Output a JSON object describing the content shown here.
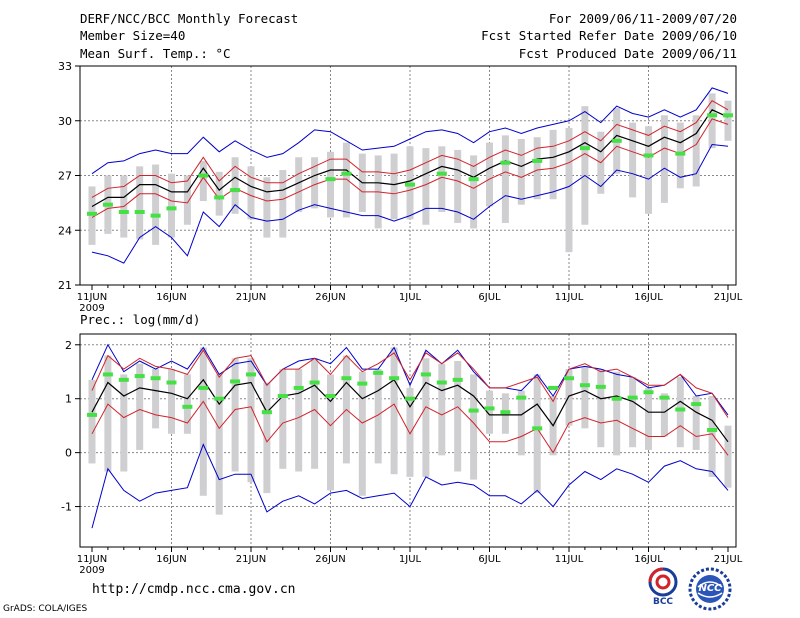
{
  "header": {
    "title": "DERF/NCC/BCC Monthly Forecast",
    "member_size": "Member Size=40",
    "variable": "Mean Surf. Temp.: °C",
    "forecast_period": "For 2009/06/11-2009/07/20",
    "fcst_started": "Fcst Started Refer Date 2009/06/10",
    "fcst_produced": "Fcst Produced Date 2009/06/11"
  },
  "footer": {
    "url": "http://cmdp.ncc.cma.gov.cn",
    "grads": "GrADS: COLA/IGES",
    "logo_bcc": "BCC",
    "logo_ncc": "NCC"
  },
  "colors": {
    "mean": "#000000",
    "std": "#d2232a",
    "range": "#0000cc",
    "box": "#cfcfd2",
    "obs": "#44e044",
    "grid": "#888888"
  },
  "chart_data": [
    {
      "type": "line",
      "title": "Mean Surf. Temp.: °C",
      "x_tick_labels": [
        "11JUN",
        "16JUN",
        "21JUN",
        "26JUN",
        "1JUL",
        "6JUL",
        "11JUL",
        "16JUL",
        "21JUL"
      ],
      "x_tick_day": [
        0,
        5,
        10,
        15,
        20,
        25,
        30,
        35,
        40
      ],
      "year_label": "2009",
      "ylim": [
        21,
        33
      ],
      "y_ticks": [
        21,
        24,
        27,
        30,
        33
      ],
      "days": 40,
      "series": [
        {
          "name": "ensemble mean",
          "values": [
            25.3,
            25.8,
            25.8,
            26.5,
            26.5,
            26.1,
            26.1,
            27.4,
            26.2,
            26.9,
            26.4,
            26.1,
            26.2,
            26.6,
            27,
            27.3,
            27.3,
            26.6,
            26.6,
            26.5,
            26.7,
            27.1,
            27.5,
            27.3,
            26.9,
            27.4,
            27.8,
            27.5,
            27.9,
            28,
            28.3,
            28.8,
            28.3,
            29.2,
            28.9,
            28.6,
            29.1,
            28.8,
            29.3,
            30.6,
            30.2
          ]
        },
        {
          "name": "upper std",
          "values": [
            25.8,
            26.3,
            26.4,
            27,
            27,
            26.6,
            26.7,
            28,
            26.7,
            27.5,
            26.9,
            26.6,
            26.6,
            27.1,
            27.5,
            27.9,
            27.9,
            27.2,
            27.2,
            27.1,
            27.3,
            27.7,
            28.1,
            27.9,
            27.5,
            28,
            28.4,
            28.1,
            28.5,
            28.6,
            28.9,
            29.4,
            28.9,
            29.8,
            29.5,
            29.2,
            29.7,
            29.4,
            29.9,
            31.1,
            30.6
          ]
        },
        {
          "name": "lower std",
          "values": [
            24.7,
            25.2,
            25.3,
            26,
            26,
            25.6,
            25.5,
            26.9,
            25.7,
            26.3,
            25.9,
            25.6,
            25.7,
            26.1,
            26.5,
            26.8,
            26.8,
            26.1,
            26.1,
            26,
            26.2,
            26.5,
            26.9,
            26.7,
            26.3,
            26.8,
            27.2,
            26.9,
            27.3,
            27.4,
            27.7,
            28.2,
            27.7,
            28.6,
            28.3,
            28,
            28.5,
            28.2,
            28.7,
            30.1,
            29.8
          ]
        },
        {
          "name": "ensemble max",
          "values": [
            27.1,
            27.7,
            27.8,
            28.2,
            28.4,
            28.2,
            28.2,
            29.1,
            28.3,
            28.9,
            28.4,
            28,
            28.2,
            28.8,
            29.5,
            29.4,
            28.9,
            28.4,
            28.5,
            28.6,
            29,
            29.4,
            29.5,
            29.3,
            28.8,
            29.4,
            29.6,
            29.3,
            29.6,
            29.8,
            30,
            30.5,
            29.9,
            30.8,
            30.4,
            30.2,
            30.6,
            30.2,
            30.6,
            31.8,
            31.5
          ]
        },
        {
          "name": "ensemble min",
          "values": [
            22.8,
            22.6,
            22.2,
            23.6,
            24.2,
            23.6,
            22.6,
            25,
            24.2,
            25.4,
            24.7,
            24.5,
            24.6,
            25.1,
            25.4,
            25.2,
            25,
            24.8,
            24.8,
            24.5,
            24.8,
            25.2,
            25.2,
            25,
            24.6,
            25.3,
            25.9,
            25.7,
            25.9,
            26.1,
            26.4,
            27,
            26.4,
            27.3,
            27.1,
            26.8,
            27.4,
            26.9,
            27.1,
            28.7,
            28.6
          ]
        },
        {
          "name": "box top",
          "values": [
            26.4,
            27,
            27,
            27.5,
            27.6,
            27.1,
            27,
            27.8,
            27.2,
            28,
            27.5,
            26.9,
            27.3,
            28,
            28,
            28.3,
            28.8,
            28.2,
            28.1,
            28.2,
            28.6,
            28.5,
            28.6,
            28.4,
            28.1,
            28.8,
            29.2,
            29,
            29.1,
            29.5,
            29.6,
            30.8,
            29.4,
            30.7,
            29.9,
            29.7,
            30.3,
            29.9,
            30.3,
            31.5,
            31.1
          ]
        },
        {
          "name": "box bottom",
          "values": [
            23.2,
            23.8,
            23.6,
            23.5,
            23.2,
            23.6,
            24.3,
            25.6,
            24.8,
            24.9,
            24.6,
            23.6,
            23.6,
            25,
            25.2,
            24.7,
            24.7,
            25,
            24.1,
            24.6,
            24.6,
            24.3,
            25,
            24.4,
            24.1,
            25.3,
            24.4,
            25.4,
            25.7,
            25.7,
            22.8,
            24.3,
            26,
            27.1,
            25.8,
            24.9,
            25.5,
            26.3,
            26.4,
            28.5,
            28.9
          ]
        },
        {
          "name": "observed",
          "values": [
            24.9,
            25.4,
            25,
            25,
            24.8,
            25.2,
            null,
            27,
            25.8,
            26.2,
            null,
            null,
            null,
            null,
            null,
            26.8,
            27.1,
            null,
            null,
            null,
            26.5,
            null,
            27.1,
            null,
            26.8,
            null,
            27.7,
            null,
            27.8,
            null,
            null,
            28.5,
            null,
            28.9,
            null,
            28.1,
            null,
            28.2,
            null,
            30.3,
            30.3
          ]
        }
      ]
    },
    {
      "type": "line",
      "title": "Prec.: log(mm/d)",
      "x_tick_labels": [
        "11JUN",
        "16JUN",
        "21JUN",
        "26JUN",
        "1JUL",
        "6JUL",
        "11JUL",
        "16JUL",
        "21JUL"
      ],
      "x_tick_day": [
        0,
        5,
        10,
        15,
        20,
        25,
        30,
        35,
        40
      ],
      "year_label": "2009",
      "ylim": [
        -1.75,
        2.2
      ],
      "y_ticks": [
        -1,
        0,
        1,
        2
      ],
      "days": 40,
      "series": [
        {
          "name": "ensemble mean",
          "values": [
            0.75,
            1.3,
            1.05,
            1.2,
            1.15,
            1.1,
            1,
            1.35,
            0.9,
            1.25,
            1.3,
            0.75,
            1.05,
            1.1,
            1.25,
            0.95,
            1.3,
            1,
            1.15,
            1.35,
            0.85,
            1.3,
            1.15,
            1.25,
            1.05,
            0.7,
            0.7,
            0.7,
            0.9,
            0.5,
            1.05,
            1.15,
            1,
            1.05,
            0.95,
            0.75,
            0.75,
            0.95,
            0.75,
            0.6,
            0.2
          ]
        },
        {
          "name": "upper std",
          "values": [
            1.15,
            1.8,
            1.55,
            1.75,
            1.6,
            1.55,
            1.45,
            1.9,
            1.4,
            1.75,
            1.8,
            1.25,
            1.55,
            1.55,
            1.75,
            1.45,
            1.8,
            1.5,
            1.65,
            1.85,
            1.35,
            1.85,
            1.65,
            1.85,
            1.55,
            1.2,
            1.2,
            1.3,
            1.4,
            0.95,
            1.55,
            1.65,
            1.5,
            1.55,
            1.4,
            1.25,
            1.25,
            1.45,
            1.2,
            1.1,
            0.65
          ]
        },
        {
          "name": "lower std",
          "values": [
            0.35,
            0.9,
            0.65,
            0.8,
            0.7,
            0.65,
            0.55,
            0.95,
            0.45,
            0.8,
            0.85,
            0.2,
            0.55,
            0.65,
            0.8,
            0.5,
            0.8,
            0.55,
            0.7,
            0.9,
            0.35,
            0.85,
            0.7,
            0.85,
            0.55,
            0.2,
            0.2,
            0.3,
            0.45,
            0,
            0.55,
            0.65,
            0.55,
            0.6,
            0.45,
            0.3,
            0.3,
            0.5,
            0.3,
            0.35,
            -0.05
          ]
        },
        {
          "name": "ensemble max",
          "values": [
            1.35,
            2,
            1.5,
            1.7,
            1.55,
            1.7,
            1.55,
            1.95,
            1.45,
            1.65,
            1.7,
            1.25,
            1.55,
            1.7,
            1.75,
            1.65,
            1.95,
            1.55,
            1.55,
            1.95,
            1.25,
            1.9,
            1.65,
            1.9,
            1.5,
            1.2,
            1.2,
            1.15,
            1.45,
            1.05,
            1.55,
            1.6,
            1.55,
            1.45,
            1.4,
            1.2,
            1.25,
            1.45,
            1.05,
            1.1,
            0.7
          ]
        },
        {
          "name": "ensemble min",
          "values": [
            -1.4,
            -0.3,
            -0.7,
            -0.9,
            -0.75,
            -0.7,
            -0.65,
            0.15,
            -0.5,
            -0.4,
            -0.4,
            -1.1,
            -0.9,
            -0.8,
            -0.95,
            -0.75,
            -0.7,
            -0.85,
            -0.8,
            -0.75,
            -1,
            -0.45,
            -0.6,
            -0.55,
            -0.6,
            -0.8,
            -0.8,
            -0.95,
            -0.7,
            -1,
            -0.6,
            -0.35,
            -0.5,
            -0.3,
            -0.4,
            -0.55,
            -0.25,
            -0.15,
            -0.3,
            -0.35,
            -0.7
          ]
        },
        {
          "name": "box top",
          "values": [
            1.35,
            1.8,
            1.45,
            1.65,
            1.55,
            1.55,
            1.45,
            1.95,
            1.45,
            1.75,
            1.75,
            1.3,
            1.55,
            1.55,
            1.75,
            1.45,
            1.8,
            1.5,
            1.55,
            1.95,
            1.2,
            1.75,
            1.65,
            1.7,
            1.45,
            1.15,
            1.1,
            1.15,
            1.45,
            1.05,
            1.55,
            1.6,
            1.55,
            1.5,
            1.4,
            1.2,
            1.1,
            1.4,
            1.05,
            1.05,
            0.5
          ]
        },
        {
          "name": "box bottom",
          "values": [
            -0.2,
            -0.35,
            -0.35,
            0.05,
            0.45,
            0.35,
            0.35,
            -0.8,
            -1.15,
            -0.35,
            -0.55,
            -0.75,
            -0.3,
            -0.35,
            -0.3,
            -0.7,
            -0.2,
            -0.8,
            -0.2,
            -0.4,
            -0.45,
            -0.45,
            -0.05,
            -0.35,
            -0.5,
            0.35,
            0.35,
            -0.05,
            -0.75,
            -0.05,
            0.5,
            0.45,
            0.1,
            -0.05,
            0.1,
            0.05,
            0.3,
            0.1,
            0.05,
            -0.45,
            -0.65
          ]
        },
        {
          "name": "observed",
          "values": [
            0.7,
            1.45,
            1.35,
            1.42,
            1.38,
            1.3,
            0.85,
            1.2,
            1,
            1.32,
            1.45,
            0.75,
            1.05,
            1.2,
            1.3,
            1.05,
            1.38,
            1.28,
            1.48,
            1.38,
            1,
            1.45,
            1.3,
            1.35,
            0.78,
            0.82,
            0.75,
            1.02,
            0.45,
            1.2,
            1.38,
            1.25,
            1.22,
            1,
            1.02,
            1.12,
            1.02,
            0.8,
            0.9,
            0.42,
            null
          ]
        }
      ]
    }
  ]
}
